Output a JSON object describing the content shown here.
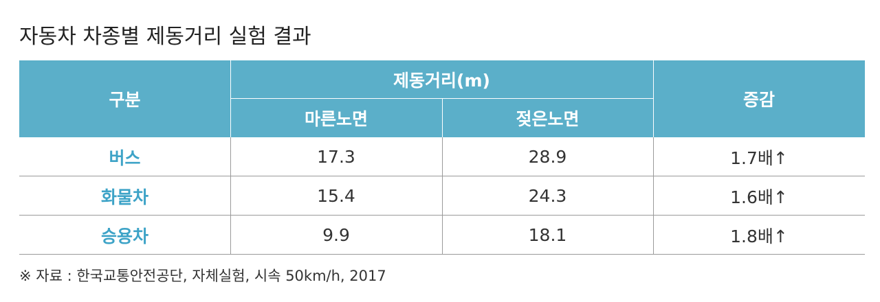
{
  "title": "자동차 차종별 제동거리 실험 결과",
  "table": {
    "header": {
      "group": "구분",
      "distance": "제동거리(m)",
      "dry": "마른노면",
      "wet": "젖은노면",
      "increase": "증감"
    },
    "rows": [
      [
        "버스",
        17.3,
        28.9,
        "1.7배↑"
      ],
      [
        "화물차",
        15.4,
        24.3,
        "1.6배↑"
      ],
      [
        "승용차",
        9.9,
        18.1,
        "1.8배↑"
      ]
    ]
  },
  "source": "※ 자료 : 한국교통안전공단, 자체실험, 시속 50km/h, 2017"
}
